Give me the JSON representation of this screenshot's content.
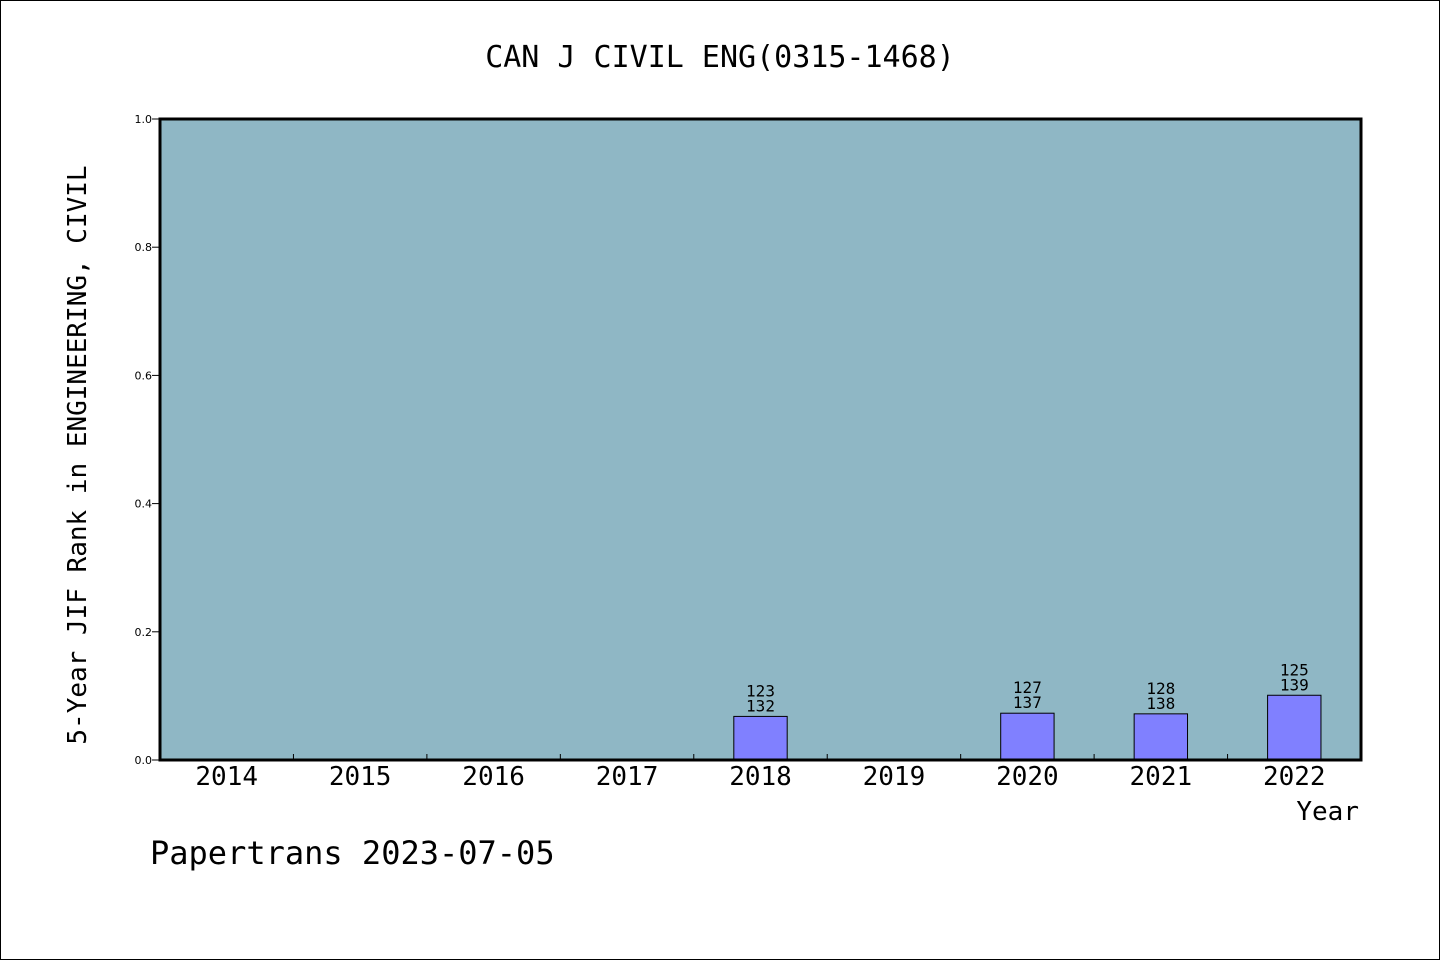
{
  "chart_data": {
    "type": "bar",
    "title": "CAN J CIVIL ENG(0315-1468)",
    "xlabel": "Year",
    "ylabel": "5-Year JIF Rank in ENGINEERING, CIVIL",
    "ylim": [
      0,
      1.0
    ],
    "yticks": [
      "0.0",
      "0.2",
      "0.4",
      "0.6",
      "0.8",
      "1.0"
    ],
    "categories": [
      "2014",
      "2015",
      "2016",
      "2017",
      "2018",
      "2019",
      "2020",
      "2021",
      "2022"
    ],
    "values": [
      null,
      null,
      null,
      null,
      0.068,
      null,
      0.073,
      0.072,
      0.101
    ],
    "labels": [
      null,
      null,
      null,
      null,
      {
        "rank": "123",
        "total": "132"
      },
      null,
      {
        "rank": "127",
        "total": "137"
      },
      {
        "rank": "128",
        "total": "138"
      },
      {
        "rank": "125",
        "total": "139"
      }
    ],
    "grid": false,
    "colors": {
      "plot_background": "#8fb7c5",
      "bar_fill": "#8080ff",
      "bar_stroke": "#000000"
    }
  },
  "footer": {
    "text": "Papertrans 2023-07-05"
  }
}
